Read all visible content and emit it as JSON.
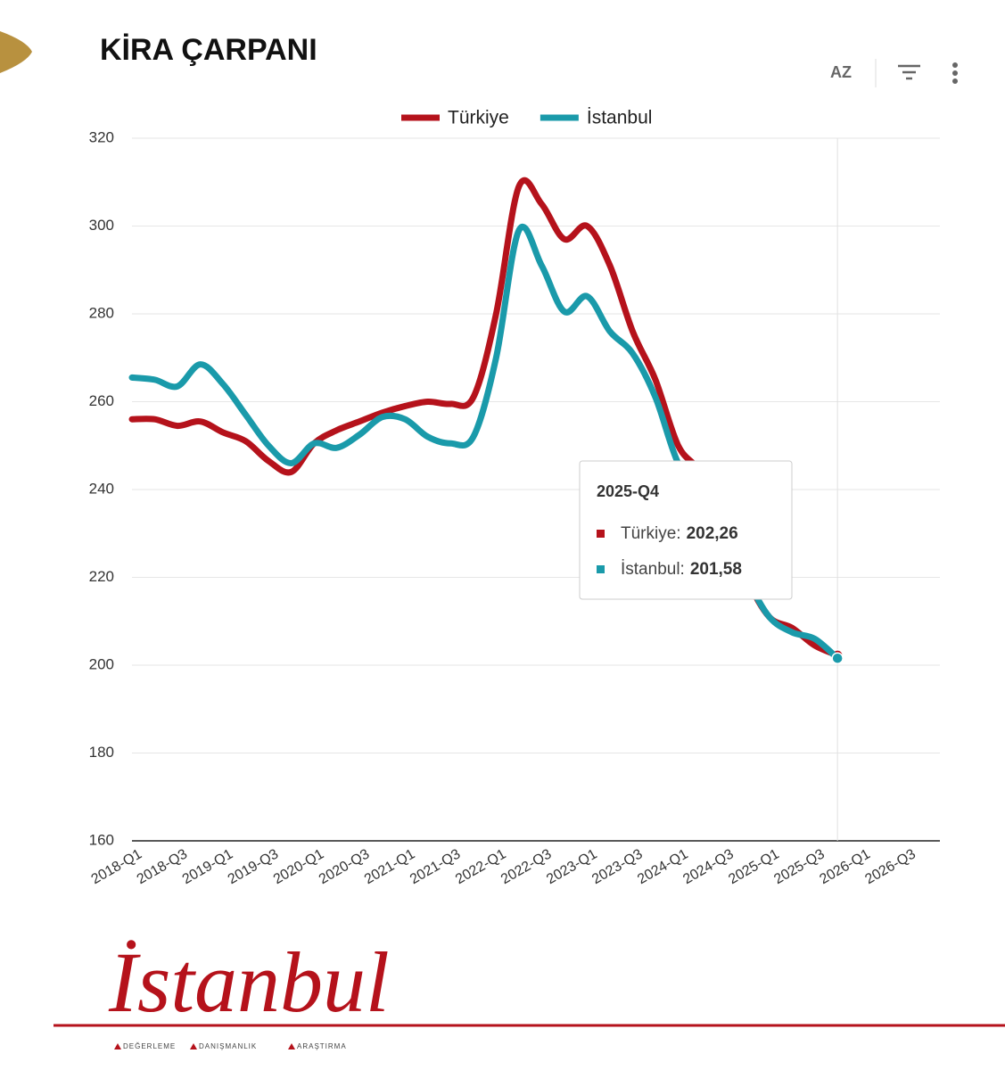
{
  "title": "KİRA ÇARPANI",
  "toolbar": {
    "sort": "AZ"
  },
  "chart_data": {
    "type": "line",
    "categories": [
      "2018-Q1",
      null,
      "2018-Q3",
      null,
      "2019-Q1",
      null,
      "2019-Q3",
      null,
      "2020-Q1",
      null,
      "2020-Q3",
      null,
      "2021-Q1",
      null,
      "2021-Q3",
      null,
      "2022-Q1",
      null,
      "2022-Q3",
      null,
      "2023-Q1",
      null,
      "2023-Q3",
      null,
      "2024-Q1",
      null,
      "2024-Q3",
      null,
      "2025-Q1",
      null,
      "2025-Q3",
      null,
      "2026-Q1",
      null,
      "2026-Q3",
      null
    ],
    "series": [
      {
        "name": "Türkiye",
        "color": "#b5121b",
        "values": [
          256,
          256,
          254.5,
          255.5,
          253,
          251,
          246.5,
          244,
          250.5,
          253.5,
          255.5,
          257.5,
          259,
          260,
          259.5,
          261,
          280,
          309,
          305,
          297,
          300,
          291,
          276,
          265,
          250,
          244,
          234,
          220,
          211,
          208.5,
          204.5,
          202.26,
          null,
          null,
          null,
          null
        ]
      },
      {
        "name": "İstanbul",
        "color": "#1a9aaa",
        "values": [
          265.5,
          265,
          263.5,
          268.5,
          264,
          257,
          250,
          246,
          250.5,
          249.5,
          252.5,
          256.5,
          256,
          252,
          250.5,
          252,
          270,
          299,
          291,
          280.5,
          284,
          276,
          271,
          261,
          246,
          240,
          231,
          220,
          211,
          207.5,
          206,
          201.58,
          null,
          null,
          null,
          null
        ]
      }
    ],
    "ylim": [
      160,
      320
    ],
    "yticks": [
      160,
      180,
      200,
      220,
      240,
      260,
      280,
      300,
      320
    ],
    "grid": true,
    "legend": "top",
    "tooltip": {
      "title": "2025-Q4",
      "items": [
        {
          "label": "Türkiye:",
          "value": "202,26"
        },
        {
          "label": "İstanbul:",
          "value": "201,58"
        }
      ]
    }
  },
  "logo": {
    "name": "İstanbul",
    "tags": [
      "DEĞERLEME",
      "DANIŞMANLIK",
      "ARAŞTIRMA"
    ]
  }
}
